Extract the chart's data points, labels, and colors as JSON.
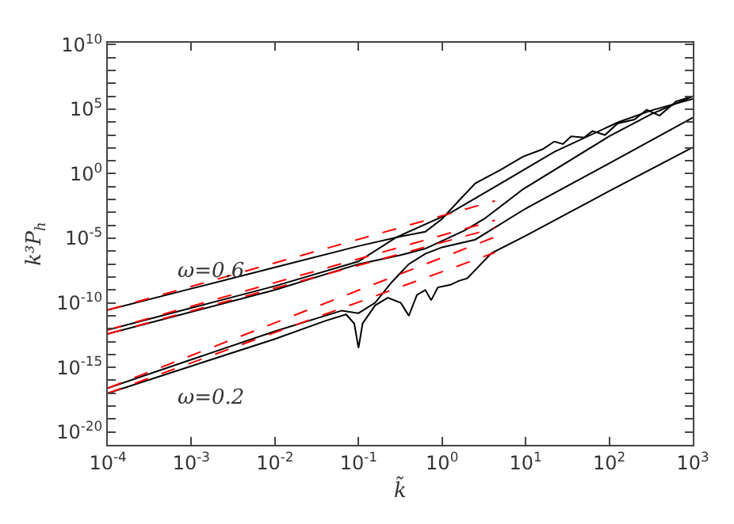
{
  "chart_data": {
    "type": "line",
    "xlabel": "k̃",
    "ylabel": "k³P$_{h}$",
    "log": "xy",
    "grid": false,
    "marker": "none",
    "xlim": [
      0.0001,
      1000
    ],
    "ylim": [
      1e-21,
      14000000000.0
    ],
    "xticks": [
      {
        "value": 0.0001,
        "label": "10$^{-4}$"
      },
      {
        "value": 0.001,
        "label": "10$^{-3}$"
      },
      {
        "value": 0.01,
        "label": "10$^{-2}$"
      },
      {
        "value": 0.1,
        "label": "10$^{-1}$"
      },
      {
        "value": 1,
        "label": "10$^{0}$"
      },
      {
        "value": 10,
        "label": "10$^{1}$"
      },
      {
        "value": 100,
        "label": "10$^{2}$"
      },
      {
        "value": 1000,
        "label": "10$^{3}$"
      }
    ],
    "yticks": [
      {
        "value": 1e-20,
        "label": "10$^{-20}$"
      },
      {
        "value": 1e-19,
        "label": null
      },
      {
        "value": 1e-18,
        "label": null
      },
      {
        "value": 1e-17,
        "label": null
      },
      {
        "value": 1e-16,
        "label": null
      },
      {
        "value": 1e-15,
        "label": "10$^{-15}$"
      },
      {
        "value": 1e-14,
        "label": null
      },
      {
        "value": 1e-13,
        "label": null
      },
      {
        "value": 1e-12,
        "label": null
      },
      {
        "value": 1e-11,
        "label": null
      },
      {
        "value": 1e-10,
        "label": "10$^{-10}$"
      },
      {
        "value": 1e-09,
        "label": null
      },
      {
        "value": 1e-08,
        "label": null
      },
      {
        "value": 1e-07,
        "label": null
      },
      {
        "value": 1e-06,
        "label": null
      },
      {
        "value": 1e-05,
        "label": "10$^{-5}$"
      },
      {
        "value": 0.0001,
        "label": null
      },
      {
        "value": 0.001,
        "label": null
      },
      {
        "value": 0.01,
        "label": null
      },
      {
        "value": 0.1,
        "label": null
      },
      {
        "value": 1,
        "label": "10$^{0}$"
      },
      {
        "value": 10,
        "label": null
      },
      {
        "value": 100,
        "label": null
      },
      {
        "value": 1000,
        "label": null
      },
      {
        "value": 10000,
        "label": null
      },
      {
        "value": 100000,
        "label": "10$^{5}$"
      },
      {
        "value": 1000000.0,
        "label": null
      },
      {
        "value": 10000000.0,
        "label": null
      },
      {
        "value": 100000000.0,
        "label": null
      },
      {
        "value": 1000000000.0,
        "label": null
      },
      {
        "value": 10000000000.0,
        "label": "10$^{10}$"
      }
    ],
    "annotations": [
      "ω=0.6",
      "ω=0.2"
    ],
    "series": [
      {
        "color": "#000000",
        "line_style": "solid",
        "x": [
          0.0001,
          0.001,
          0.01,
          0.1,
          0.32,
          0.63,
          1,
          1.58,
          2.5,
          5,
          9.3,
          16,
          22,
          28,
          35,
          50,
          63,
          89,
          126,
          200,
          282,
          400,
          631,
          1000
        ],
        "values": [
          2.8e-11,
          1.26e-09,
          5.6e-08,
          2.5e-06,
          1.4e-05,
          3.2e-05,
          0.00032,
          0.0079,
          0.18,
          2,
          21,
          79,
          316,
          200,
          794,
          631,
          2000,
          1000,
          7900,
          15800,
          89000,
          31600,
          398000,
          1000000.0
        ]
      },
      {
        "color": "#000000",
        "line_style": "solid",
        "x": [
          0.0001,
          0.001,
          0.01,
          0.1,
          0.28,
          1.2,
          5.2,
          22,
          129,
          316,
          1000
        ],
        "values": [
          7.9e-13,
          4e-11,
          2e-09,
          1.6e-07,
          1.15e-05,
          0.00079,
          0.2,
          50,
          10000,
          79000,
          630000
        ]
      },
      {
        "color": "#000000",
        "line_style": "solid",
        "x": [
          0.0001,
          0.001,
          0.01,
          0.1,
          0.32,
          0.63,
          1,
          1.86,
          3.2,
          9.3,
          100,
          316,
          1000
        ],
        "values": [
          4e-13,
          2e-11,
          1e-09,
          1e-07,
          5e-07,
          1.58e-06,
          6.3e-06,
          4e-05,
          0.00032,
          0.063,
          794,
          40000,
          1000000.0
        ]
      },
      {
        "color": "#000000",
        "line_style": "solid",
        "x": [
          0.0001,
          0.001,
          0.01,
          0.063,
          0.1,
          0.158,
          0.25,
          0.4,
          0.63,
          1,
          2.5,
          10,
          100,
          1000
        ],
        "values": [
          2.5e-17,
          4e-15,
          6.3e-13,
          2.5e-11,
          1.58e-11,
          1e-10,
          4e-09,
          1e-07,
          6.3e-07,
          2e-06,
          7.9e-06,
          0.002,
          6.3,
          22400
        ]
      },
      {
        "color": "#000000",
        "line_style": "solid",
        "x": [
          0.0001,
          0.001,
          0.01,
          0.04,
          0.071,
          0.089,
          0.1,
          0.112,
          0.158,
          0.224,
          0.32,
          0.4,
          0.5,
          0.63,
          0.74,
          0.89,
          1.26,
          1.58,
          2,
          3.9,
          10,
          100,
          1000
        ],
        "values": [
          1e-17,
          1.26e-15,
          1.58e-13,
          4e-12,
          1.26e-11,
          2.5e-12,
          3.2e-14,
          2.5e-12,
          6.3e-11,
          2.5e-10,
          1e-10,
          1e-11,
          4e-10,
          1e-09,
          1.58e-10,
          1.58e-09,
          2.5e-09,
          5e-09,
          7.9e-09,
          7.1e-07,
          1.58e-05,
          0.045,
          112
        ]
      },
      {
        "color": "#ff0000",
        "line_style": "dashed",
        "x": [
          0.0001,
          4.3
        ],
        "values": [
          2.8e-11,
          0.0079
        ]
      },
      {
        "color": "#ff0000",
        "line_style": "dashed",
        "x": [
          0.0001,
          4.3
        ],
        "values": [
          7.9e-13,
          0.00025
        ]
      },
      {
        "color": "#ff0000",
        "line_style": "dashed",
        "x": [
          0.0001,
          4.3
        ],
        "values": [
          4e-13,
          6.3e-05
        ]
      },
      {
        "color": "#ff0000",
        "line_style": "dashed",
        "x": [
          0.0001,
          4.3
        ],
        "values": [
          2.5e-17,
          1.26e-05
        ]
      },
      {
        "color": "#ff0000",
        "line_style": "dashed",
        "x": [
          0.0001,
          4.3
        ],
        "values": [
          1e-17,
          7.9e-07
        ]
      }
    ]
  }
}
